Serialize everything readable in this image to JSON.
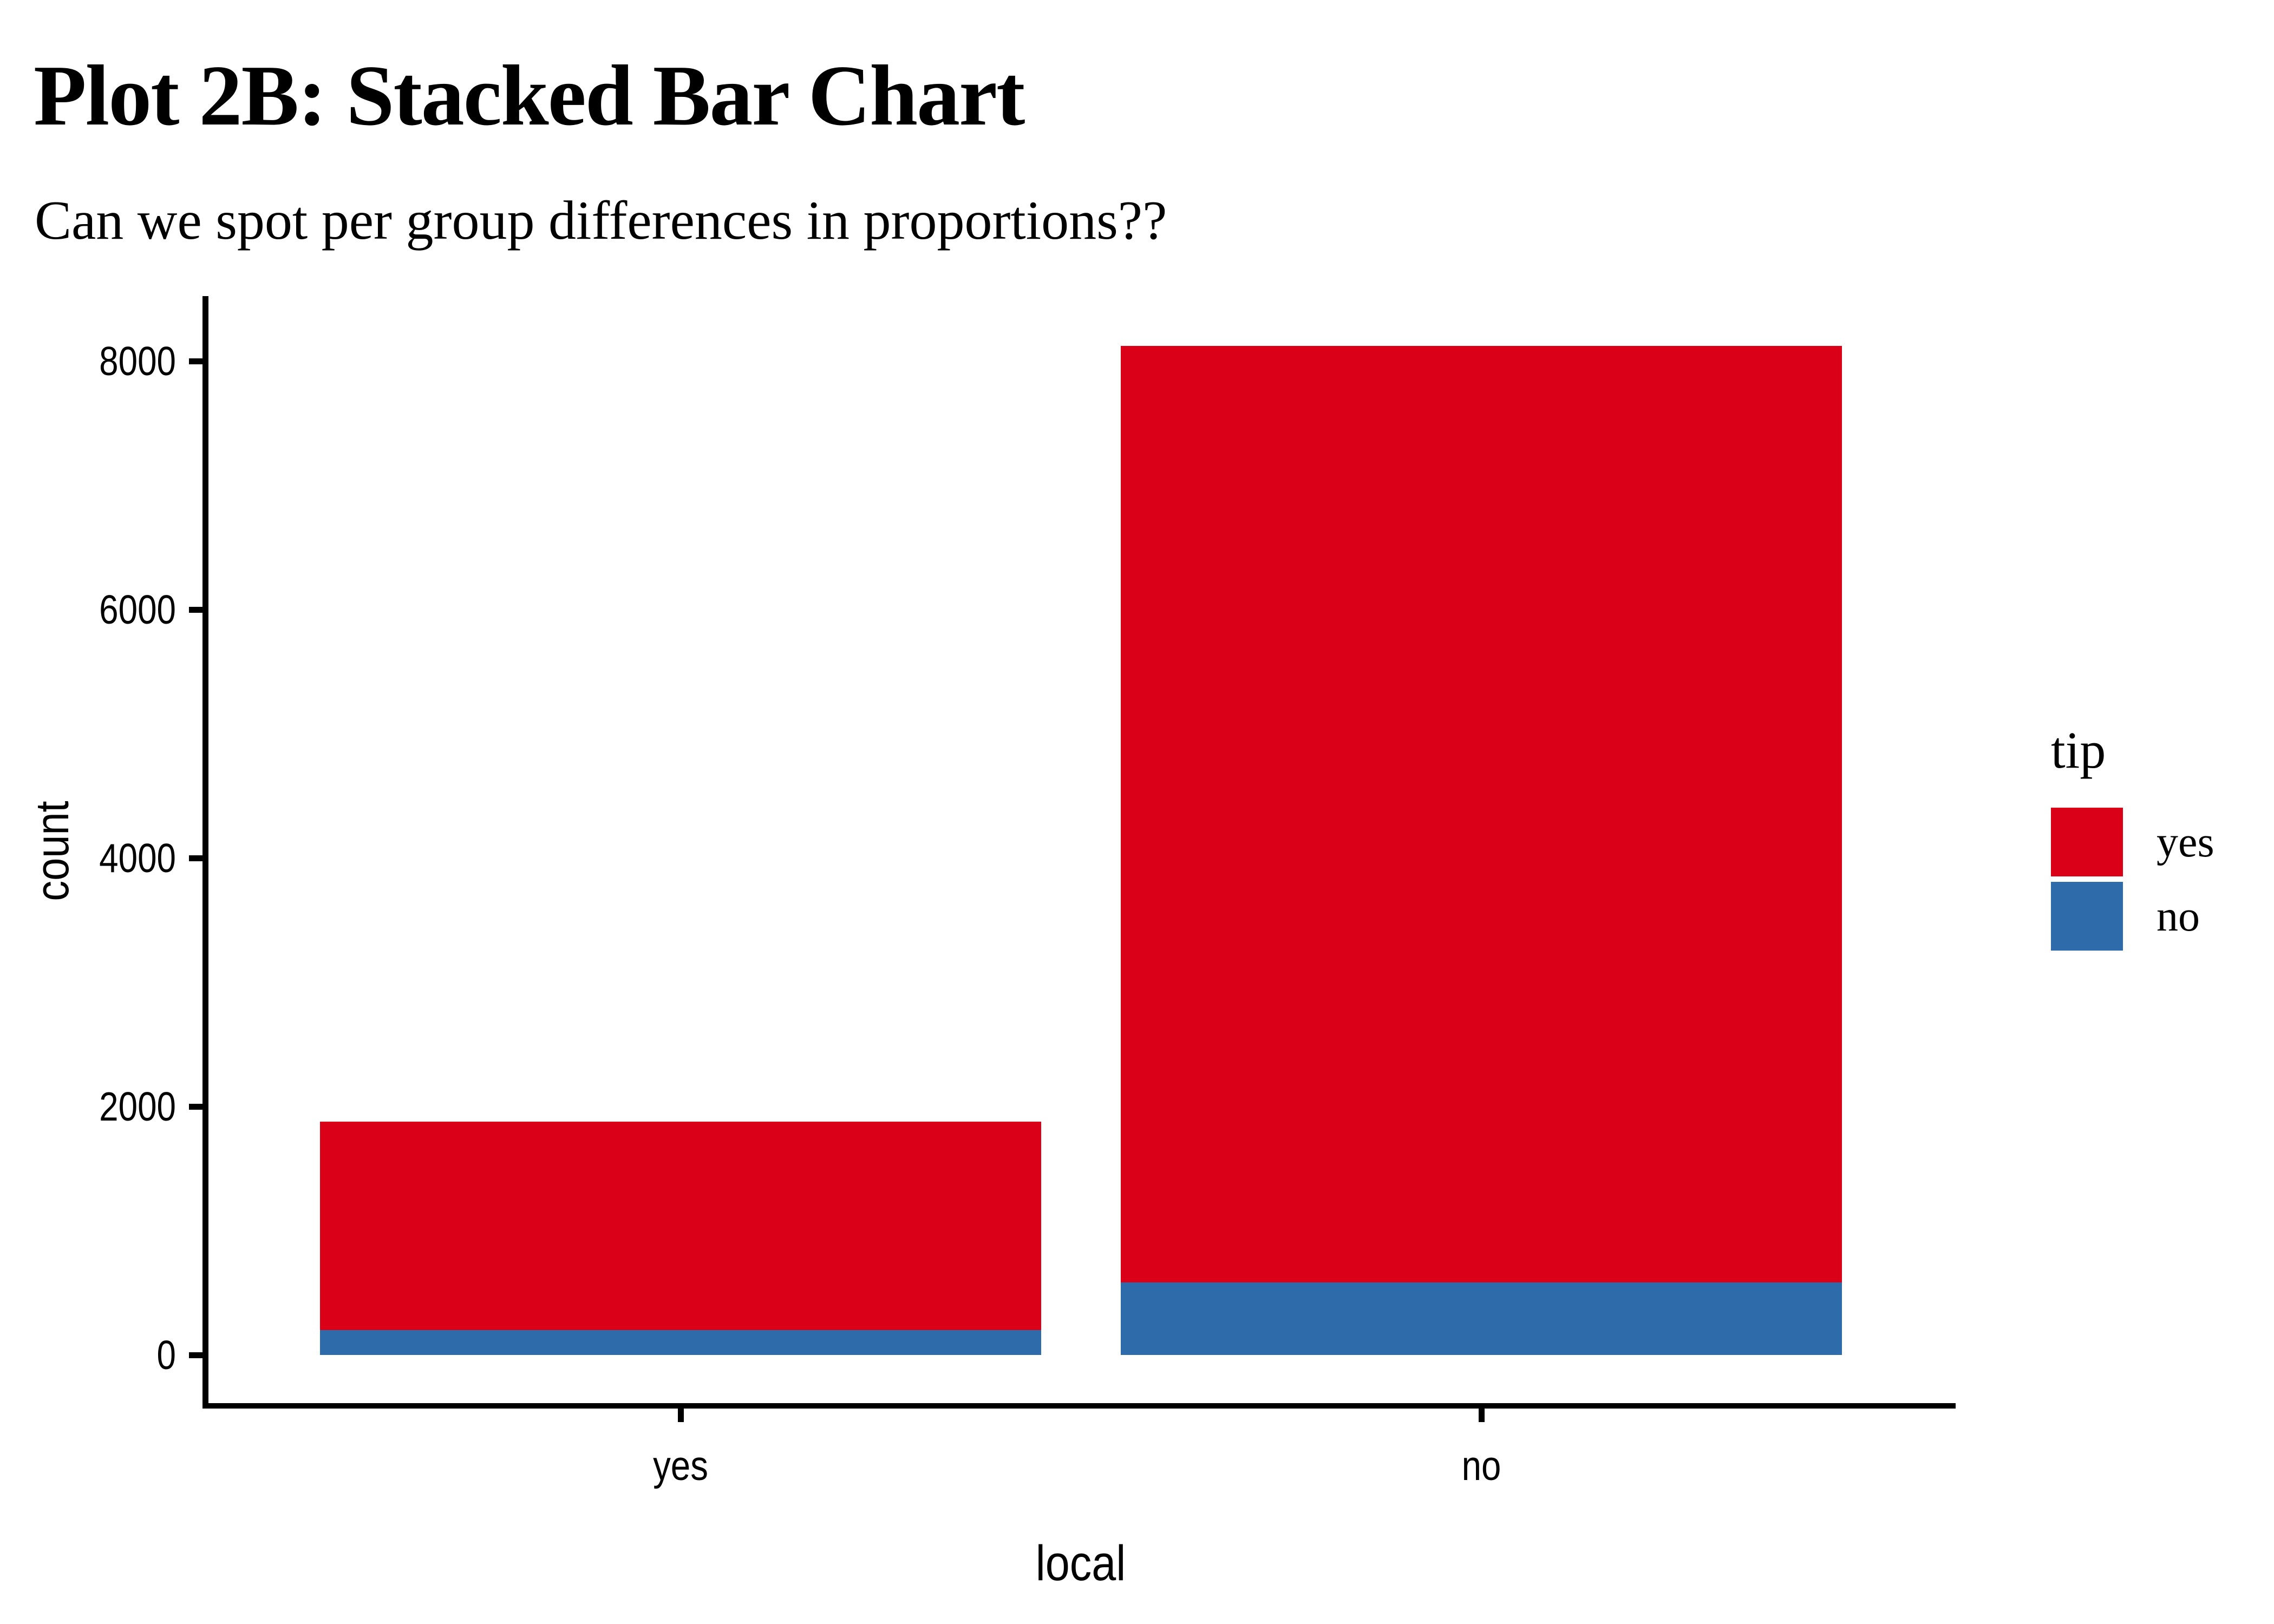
{
  "header": {
    "title": "Plot 2B: Stacked Bar Chart",
    "subtitle": "Can we spot per group differences in proportions??"
  },
  "chart_data": {
    "type": "bar",
    "stacked": true,
    "title": "Plot 2B: Stacked Bar Chart",
    "subtitle": "Can we spot per group differences in proportions??",
    "xlabel": "local",
    "ylabel": "count",
    "categories": [
      "yes",
      "no"
    ],
    "series": [
      {
        "name": "yes",
        "color": "#D90017",
        "values": [
          1680,
          7535
        ]
      },
      {
        "name": "no",
        "color": "#2D6BAB",
        "values": [
          200,
          585
        ]
      }
    ],
    "stack_order_bottom_to_top": [
      "no",
      "yes"
    ],
    "bar_totals": [
      1880,
      8120
    ],
    "y_ticks": [
      0,
      2000,
      4000,
      6000,
      8000
    ],
    "ylim": [
      -405,
      8505
    ],
    "grid": false,
    "axis_color": "#000000",
    "legend": {
      "title": "tip",
      "position": "right",
      "entries": [
        {
          "label": "yes",
          "color": "#D90017"
        },
        {
          "label": "no",
          "color": "#2D6BAB"
        }
      ]
    }
  }
}
